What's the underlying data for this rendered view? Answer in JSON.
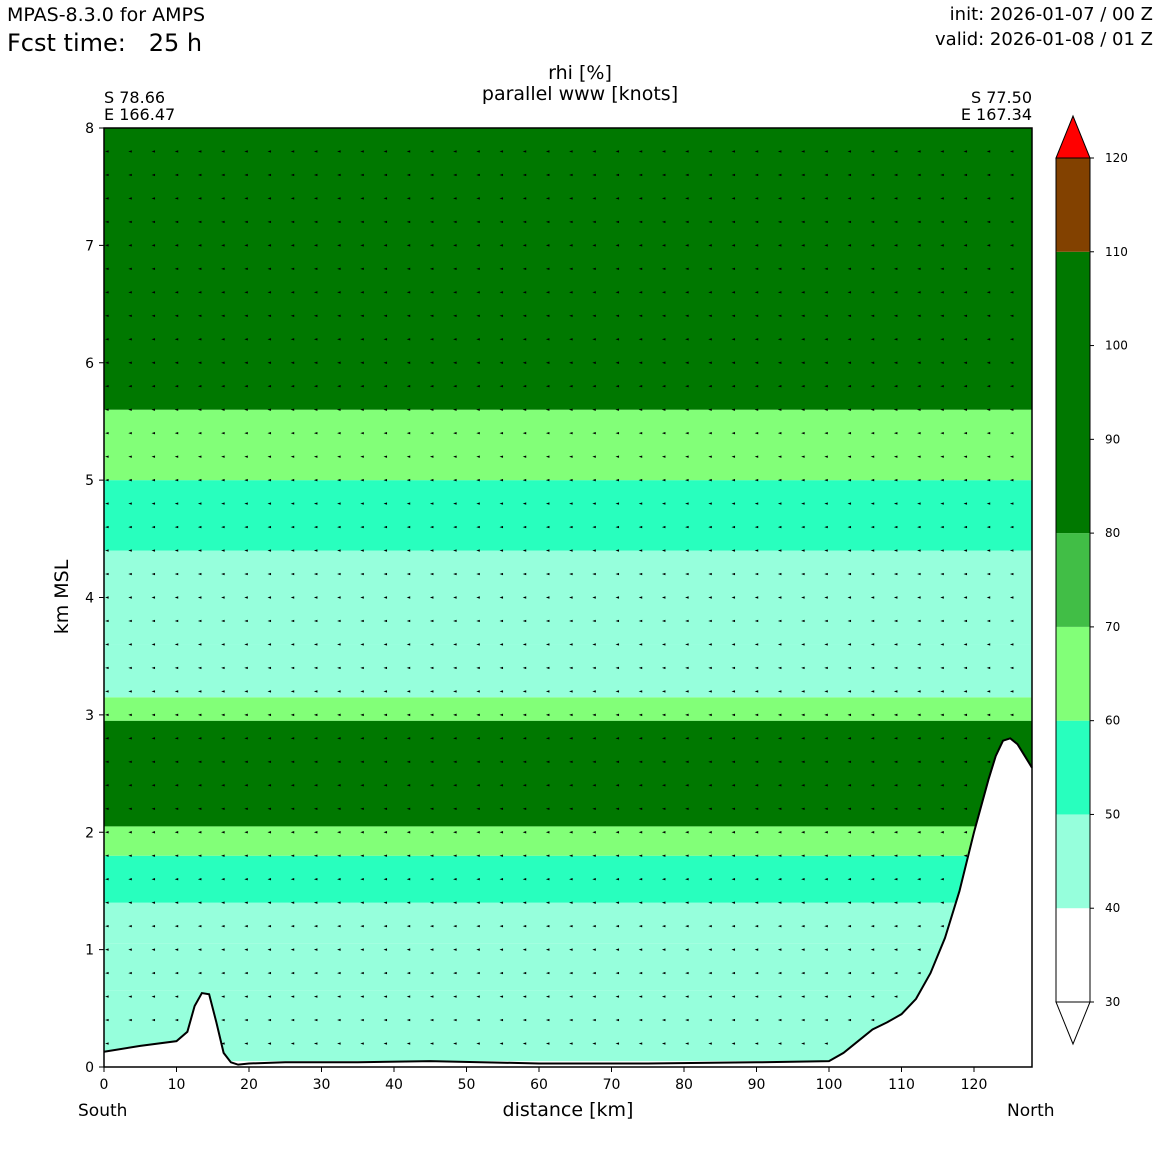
{
  "header": {
    "model": "MPAS-8.3.0 for AMPS",
    "fcst_label": "Fcst time:",
    "fcst_value": "25 h",
    "init": "init: 2026-01-07 / 00 Z",
    "valid": "valid: 2026-01-08 / 01 Z"
  },
  "endpoints": {
    "left_lat": "S 78.66",
    "left_lon": "E 166.47",
    "right_lat": "S 77.50",
    "right_lon": "E 167.34",
    "left_dir": "South",
    "right_dir": "North"
  },
  "chart_data": {
    "type": "heatmap",
    "title": "rhi [%]",
    "subtitle": "parallel www [knots]",
    "xlabel": "distance [km]",
    "ylabel": "km MSL",
    "xlim": [
      0,
      128
    ],
    "ylim": [
      0,
      8
    ],
    "x_ticks": [
      0,
      10,
      20,
      30,
      40,
      50,
      60,
      70,
      80,
      90,
      100,
      110,
      120
    ],
    "y_ticks": [
      0,
      1,
      2,
      3,
      4,
      5,
      6,
      7,
      8
    ],
    "colorbar": {
      "ticks": [
        30,
        40,
        50,
        60,
        70,
        80,
        90,
        100,
        110,
        120
      ],
      "bins": [
        {
          "from": 30,
          "to": 40,
          "color": "#ffffff"
        },
        {
          "from": 40,
          "to": 50,
          "color": "#96ffdc"
        },
        {
          "from": 50,
          "to": 60,
          "color": "#28ffbe"
        },
        {
          "from": 60,
          "to": 70,
          "color": "#82ff78"
        },
        {
          "from": 70,
          "to": 80,
          "color": "#41be46"
        },
        {
          "from": 80,
          "to": 110,
          "color": "#007800"
        },
        {
          "from": 110,
          "to": 120,
          "color": "#824100"
        },
        {
          "from": 120,
          "to": 130,
          "color": "#ff0000"
        }
      ],
      "extend": "both"
    },
    "rh_bands": [
      {
        "ybot": 0.05,
        "ytop": 0.65,
        "rh": 45
      },
      {
        "ybot": 0.65,
        "ytop": 1.05,
        "rh": 45
      },
      {
        "ybot": 1.05,
        "ytop": 1.4,
        "rh": 45
      },
      {
        "ybot": 1.4,
        "ytop": 1.8,
        "rh": 55
      },
      {
        "ybot": 1.8,
        "ytop": 2.05,
        "rh": 65
      },
      {
        "ybot": 2.05,
        "ytop": 2.95,
        "rh": 85
      },
      {
        "ybot": 2.95,
        "ytop": 3.15,
        "rh": 65
      },
      {
        "ybot": 3.15,
        "ytop": 3.6,
        "rh": 45
      },
      {
        "ybot": 3.6,
        "ytop": 4.4,
        "rh": 45
      },
      {
        "ybot": 4.4,
        "ytop": 5.0,
        "rh": 55
      },
      {
        "ybot": 5.0,
        "ytop": 5.6,
        "rh": 65
      },
      {
        "ybot": 5.6,
        "ytop": 8.0,
        "rh": 85
      }
    ],
    "terrain": {
      "x": [
        0,
        5,
        10,
        11.5,
        12.5,
        13.5,
        14.5,
        15.5,
        16.5,
        17.5,
        18.5,
        20,
        25,
        35,
        45,
        60,
        75,
        90,
        100,
        102,
        104,
        106,
        108,
        110,
        112,
        114,
        116,
        118,
        120,
        122,
        123,
        124,
        125,
        126,
        127,
        128
      ],
      "y": [
        0.13,
        0.18,
        0.22,
        0.3,
        0.52,
        0.63,
        0.62,
        0.38,
        0.12,
        0.04,
        0.02,
        0.03,
        0.04,
        0.04,
        0.05,
        0.03,
        0.03,
        0.04,
        0.05,
        0.12,
        0.22,
        0.32,
        0.38,
        0.45,
        0.58,
        0.8,
        1.1,
        1.5,
        2.0,
        2.45,
        2.65,
        2.78,
        2.8,
        2.75,
        2.65,
        2.55
      ]
    },
    "wind": "parallel wind arrows, predominantly light (< 2 knots) toward decreasing distance"
  }
}
